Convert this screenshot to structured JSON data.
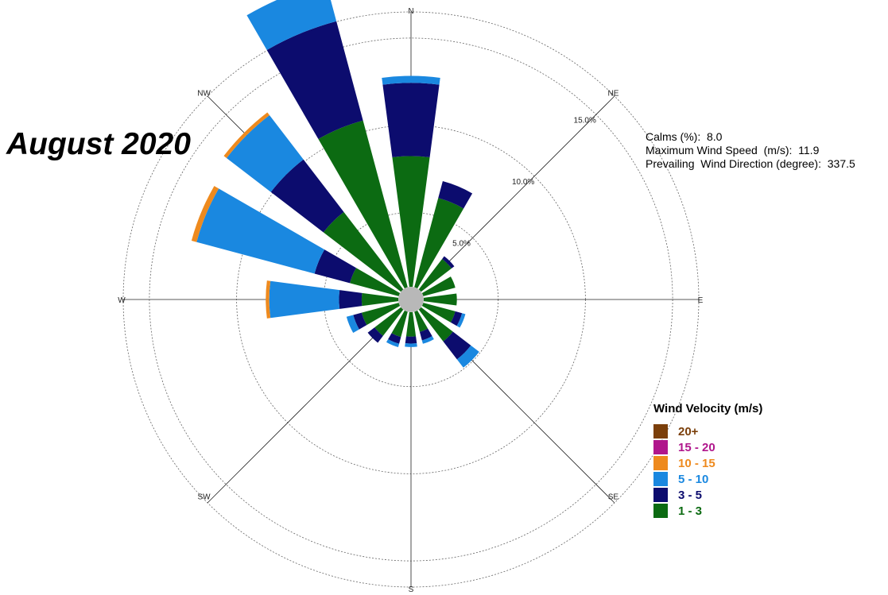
{
  "title": "August 2020",
  "stats": {
    "calms": "Calms (%):  8.0",
    "max_speed": "Maximum Wind Speed  (m/s):  11.9",
    "prevailing": "Prevailing  Wind Direction (degree):  337.5"
  },
  "legend": {
    "title": "Wind Velocity (m/s)",
    "items": [
      {
        "label": "20+",
        "color": "#7b3f0a"
      },
      {
        "label": "15 - 20",
        "color": "#b0168c"
      },
      {
        "label": "10 - 15",
        "color": "#ee8a1e"
      },
      {
        "label": "5 - 10",
        "color": "#1a88e0"
      },
      {
        "label": "3 - 5",
        "color": "#0c0c6e"
      },
      {
        "label": "1 - 3",
        "color": "#0c6b12"
      }
    ]
  },
  "chart_data": {
    "type": "windrose",
    "directions": [
      "N",
      "NNE",
      "NE",
      "ENE",
      "E",
      "ESE",
      "SE",
      "SSE",
      "S",
      "SSW",
      "SW",
      "WSW",
      "W",
      "WNW",
      "NW",
      "NNW"
    ],
    "compass_labels": [
      "N",
      "NE",
      "E",
      "SE",
      "S",
      "SW",
      "W",
      "NW"
    ],
    "ring_labels": [
      "5.0%",
      "10.0%",
      "15.0%"
    ],
    "rings": [
      5,
      10,
      15
    ],
    "max_radius_pct": 16.5,
    "series": [
      {
        "name": "1 - 3",
        "values": [
          7.5,
          5.3,
          2.2,
          1.9,
          1.9,
          1.9,
          2.3,
          1.2,
          1.4,
          1.5,
          1.9,
          2.2,
          2.1,
          2.9,
          5.6,
          9.9
        ]
      },
      {
        "name": "3 - 5",
        "values": [
          4.2,
          1.0,
          0.2,
          0.0,
          0.0,
          0.4,
          1.3,
          0.5,
          0.4,
          0.4,
          0.5,
          0.5,
          1.3,
          2.1,
          3.8,
          5.9
        ]
      },
      {
        "name": "5 - 10",
        "values": [
          0.4,
          0.0,
          0.0,
          0.0,
          0.0,
          0.2,
          0.6,
          0.2,
          0.2,
          0.2,
          0.0,
          0.4,
          4.0,
          7.0,
          3.2,
          2.3
        ]
      },
      {
        "name": "10 - 15",
        "values": [
          0.0,
          0.0,
          0.0,
          0.0,
          0.0,
          0.0,
          0.0,
          0.0,
          0.0,
          0.0,
          0.0,
          0.0,
          0.2,
          0.3,
          0.2,
          0.0
        ]
      },
      {
        "name": "15 - 20",
        "values": [
          0,
          0,
          0,
          0,
          0,
          0,
          0,
          0,
          0,
          0,
          0,
          0,
          0,
          0,
          0,
          0
        ]
      },
      {
        "name": "20+",
        "values": [
          0,
          0,
          0,
          0,
          0,
          0,
          0,
          0,
          0,
          0,
          0,
          0,
          0,
          0,
          0,
          0
        ]
      }
    ]
  }
}
